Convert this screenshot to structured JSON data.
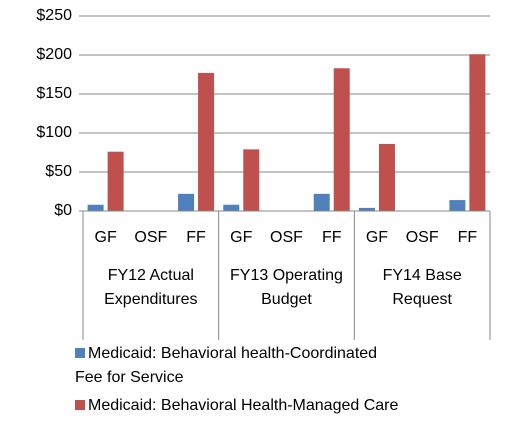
{
  "chart_data": {
    "type": "bar",
    "groups": [
      {
        "name": "FY12 Actual Expenditures",
        "categories": [
          "GF",
          "OSF",
          "FF"
        ]
      },
      {
        "name": "FY13 Operating Budget",
        "categories": [
          "GF",
          "OSF",
          "FF"
        ]
      },
      {
        "name": "FY14 Base Request",
        "categories": [
          "GF",
          "OSF",
          "FF"
        ]
      }
    ],
    "series": [
      {
        "name": "Medicaid: Behavioral health-Coordinated Fee for Service",
        "color": "#4f81bd",
        "values": [
          8,
          0,
          22,
          8,
          0,
          22,
          4,
          0,
          14
        ]
      },
      {
        "name": "Medicaid: Behavioral Health-Managed Care",
        "color": "#c0504d",
        "values": [
          76,
          0,
          177,
          79,
          0,
          183,
          86,
          0,
          201
        ]
      }
    ],
    "ylim": [
      0,
      250
    ],
    "yticks": [
      {
        "value": 0,
        "label": "$0"
      },
      {
        "value": 50,
        "label": "$50"
      },
      {
        "value": 100,
        "label": "$100"
      },
      {
        "value": 150,
        "label": "$150"
      },
      {
        "value": 200,
        "label": "$200"
      },
      {
        "value": 250,
        "label": "$250"
      }
    ],
    "grid": true,
    "legend": "bottom"
  }
}
